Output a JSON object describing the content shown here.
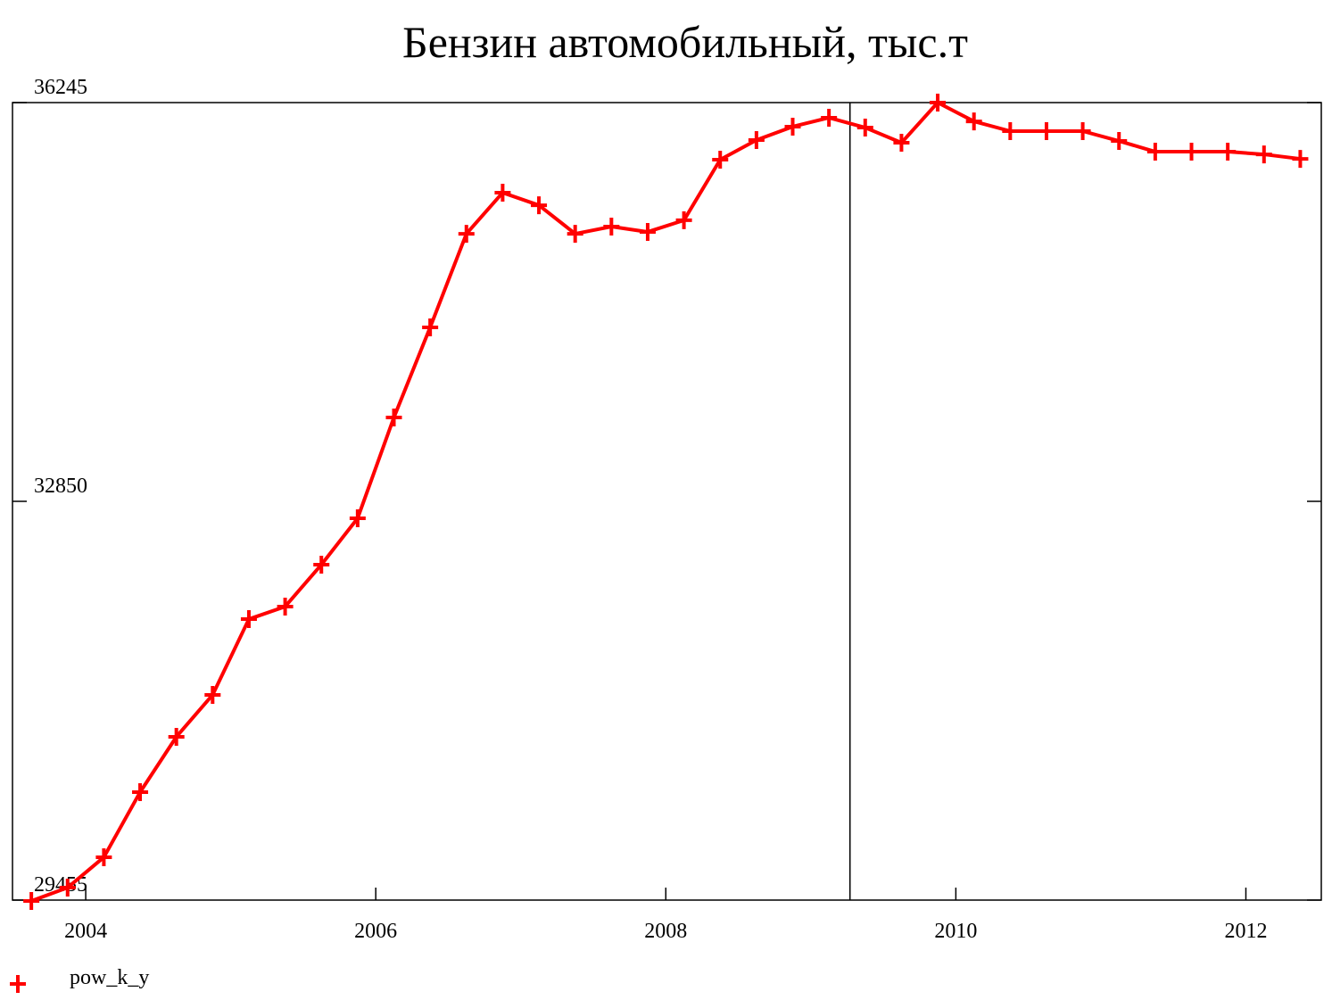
{
  "chart_data": {
    "type": "line",
    "title": "Бензин автомобильный, тыс.т",
    "x": [
      2003.625,
      2003.875,
      2004.125,
      2004.375,
      2004.625,
      2004.875,
      2005.125,
      2005.375,
      2005.625,
      2005.875,
      2006.125,
      2006.375,
      2006.625,
      2006.875,
      2007.125,
      2007.375,
      2007.625,
      2007.875,
      2008.125,
      2008.375,
      2008.625,
      2008.875,
      2009.125,
      2009.375,
      2009.625,
      2009.875,
      2010.125,
      2010.375,
      2010.625,
      2010.875,
      2011.125,
      2011.375,
      2011.625,
      2011.875,
      2012.125,
      2012.375
    ],
    "series": [
      {
        "name": "pow_k_y",
        "color": "#ff0000",
        "values": [
          29447,
          29561,
          29820,
          30374,
          30845,
          31202,
          31847,
          31954,
          32311,
          32706,
          33564,
          34331,
          35128,
          35478,
          35371,
          35128,
          35189,
          35144,
          35243,
          35759,
          35926,
          36040,
          36116,
          36032,
          35903,
          36245,
          36085,
          36002,
          36002,
          36002,
          35918,
          35827,
          35827,
          35827,
          35804,
          35766
        ]
      }
    ],
    "xlim": [
      2003.495,
      2012.52
    ],
    "xticks": [
      2004,
      2006,
      2008,
      2010,
      2012
    ],
    "ylim": [
      29455,
      36245
    ],
    "yticks": [
      29455,
      32850,
      36245
    ],
    "vline": 2009.27
  }
}
